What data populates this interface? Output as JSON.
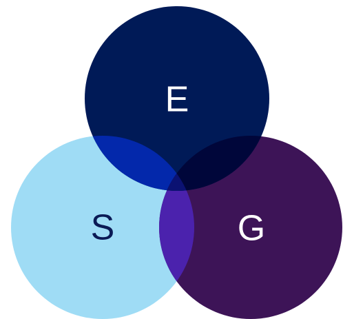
{
  "nodes": [
    {
      "label": "E"
    },
    {
      "label": "S"
    },
    {
      "label": "G"
    }
  ]
}
